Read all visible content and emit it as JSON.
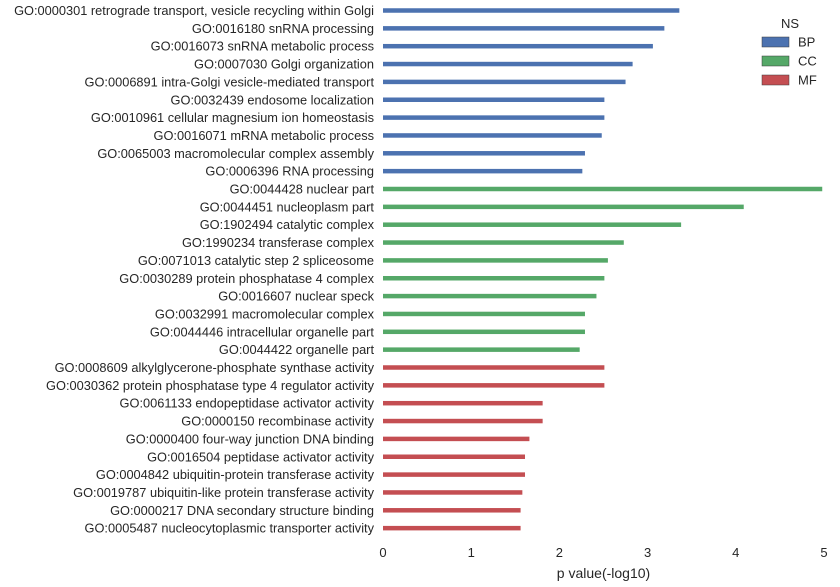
{
  "chart_data": {
    "type": "bar",
    "orientation": "horizontal",
    "xlabel": "p value(-log10)",
    "ylabel": "",
    "xlim": [
      0,
      5
    ],
    "xticks": [
      "0",
      "1",
      "2",
      "3",
      "4",
      "5"
    ],
    "grid": false,
    "legend": {
      "title": "NS",
      "placement": "top-right",
      "entries": [
        {
          "name": "BP",
          "color": "#4c72b0"
        },
        {
          "name": "CC",
          "color": "#55a868"
        },
        {
          "name": "MF",
          "color": "#c44e52"
        }
      ]
    },
    "bars": [
      {
        "label": "GO:0000301 retrograde transport, vesicle recycling within Golgi",
        "value": 3.36,
        "ns": "BP"
      },
      {
        "label": "GO:0016180 snRNA processing",
        "value": 3.19,
        "ns": "BP"
      },
      {
        "label": "GO:0016073 snRNA metabolic process",
        "value": 3.06,
        "ns": "BP"
      },
      {
        "label": "GO:0007030 Golgi organization",
        "value": 2.83,
        "ns": "BP"
      },
      {
        "label": "GO:0006891 intra-Golgi vesicle-mediated transport",
        "value": 2.75,
        "ns": "BP"
      },
      {
        "label": "GO:0032439 endosome localization",
        "value": 2.51,
        "ns": "BP"
      },
      {
        "label": "GO:0010961 cellular magnesium ion homeostasis",
        "value": 2.51,
        "ns": "BP"
      },
      {
        "label": "GO:0016071 mRNA metabolic process",
        "value": 2.48,
        "ns": "BP"
      },
      {
        "label": "GO:0065003 macromolecular complex assembly",
        "value": 2.29,
        "ns": "BP"
      },
      {
        "label": "GO:0006396 RNA processing",
        "value": 2.26,
        "ns": "BP"
      },
      {
        "label": "GO:0044428 nuclear part",
        "value": 4.98,
        "ns": "CC"
      },
      {
        "label": "GO:0044451 nucleoplasm part",
        "value": 4.09,
        "ns": "CC"
      },
      {
        "label": "GO:1902494 catalytic complex",
        "value": 3.38,
        "ns": "CC"
      },
      {
        "label": "GO:1990234 transferase complex",
        "value": 2.73,
        "ns": "CC"
      },
      {
        "label": "GO:0071013 catalytic step 2 spliceosome",
        "value": 2.55,
        "ns": "CC"
      },
      {
        "label": "GO:0030289 protein phosphatase 4 complex",
        "value": 2.51,
        "ns": "CC"
      },
      {
        "label": "GO:0016607 nuclear speck",
        "value": 2.42,
        "ns": "CC"
      },
      {
        "label": "GO:0032991 macromolecular complex",
        "value": 2.29,
        "ns": "CC"
      },
      {
        "label": "GO:0044446 intracellular organelle part",
        "value": 2.29,
        "ns": "CC"
      },
      {
        "label": "GO:0044422 organelle part",
        "value": 2.23,
        "ns": "CC"
      },
      {
        "label": "GO:0008609 alkylglycerone-phosphate synthase activity",
        "value": 2.51,
        "ns": "MF"
      },
      {
        "label": "GO:0030362 protein phosphatase type 4 regulator activity",
        "value": 2.51,
        "ns": "MF"
      },
      {
        "label": "GO:0061133 endopeptidase activator activity",
        "value": 1.81,
        "ns": "MF"
      },
      {
        "label": "GO:0000150 recombinase activity",
        "value": 1.81,
        "ns": "MF"
      },
      {
        "label": "GO:0000400 four-way junction DNA binding",
        "value": 1.66,
        "ns": "MF"
      },
      {
        "label": "GO:0016504 peptidase activator activity",
        "value": 1.61,
        "ns": "MF"
      },
      {
        "label": "GO:0004842 ubiquitin-protein transferase activity",
        "value": 1.61,
        "ns": "MF"
      },
      {
        "label": "GO:0019787 ubiquitin-like protein transferase activity",
        "value": 1.58,
        "ns": "MF"
      },
      {
        "label": "GO:0000217 DNA secondary structure binding",
        "value": 1.56,
        "ns": "MF"
      },
      {
        "label": "GO:0005487 nucleocytoplasmic transporter activity",
        "value": 1.56,
        "ns": "MF"
      }
    ]
  }
}
